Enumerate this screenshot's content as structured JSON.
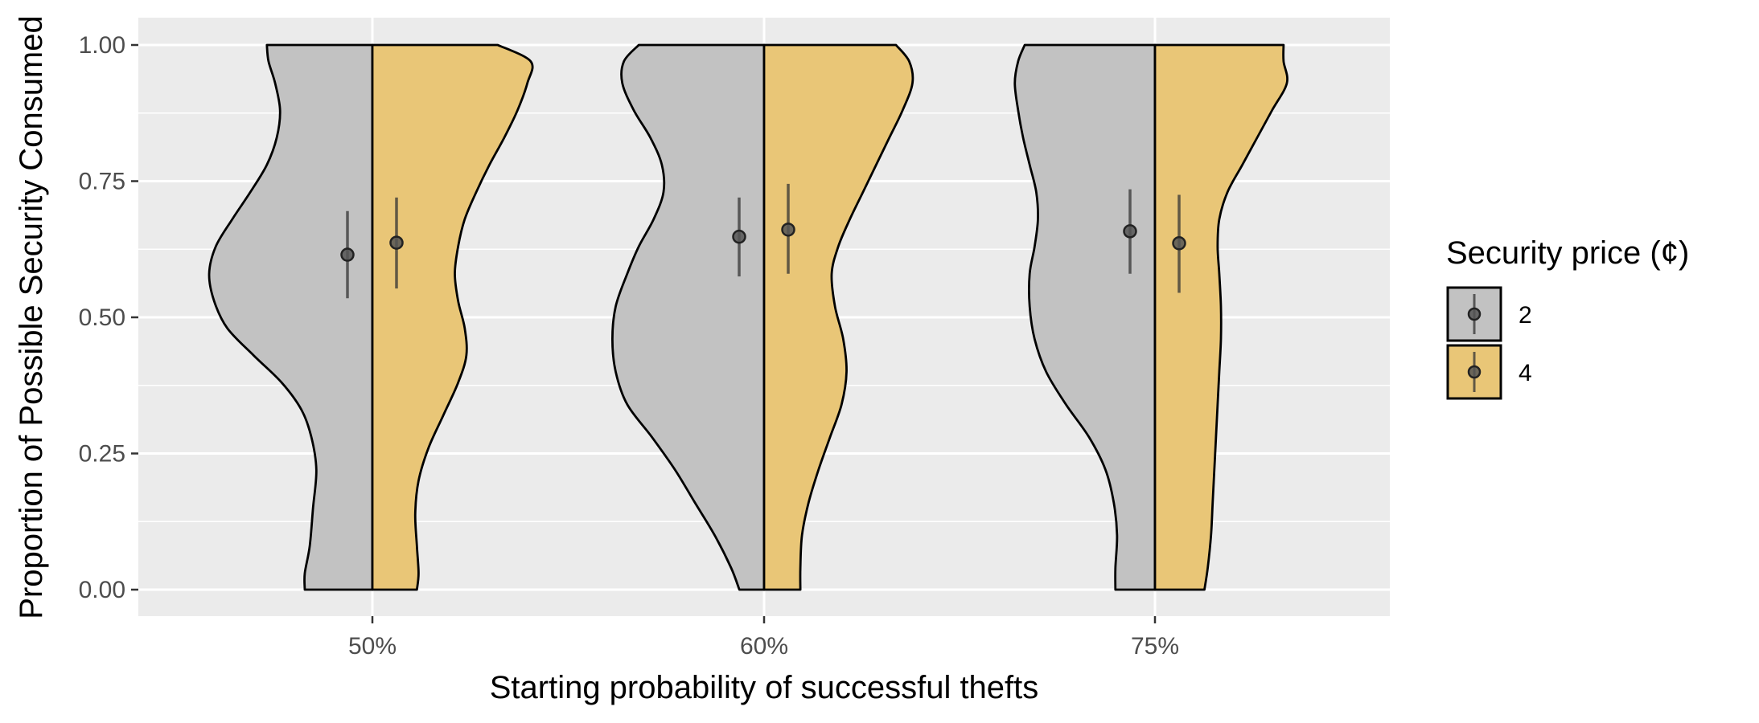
{
  "chart_data": {
    "type": "violin",
    "title": "",
    "xlabel": "Starting probability of successful thefts",
    "ylabel": "Proportion of Possible Security Consumed",
    "categories": [
      "50%",
      "60%",
      "75%"
    ],
    "ylim": [
      -0.05,
      1.05
    ],
    "yticks": [
      0.0,
      0.25,
      0.5,
      0.75,
      1.0
    ],
    "ytick_labels": [
      "0.00",
      "0.25",
      "0.50",
      "0.75",
      "1.00"
    ],
    "grid": true,
    "legend": {
      "title": "Security price (¢)",
      "placement": "right",
      "entries": [
        "2",
        "4"
      ]
    },
    "series": [
      {
        "name": "2",
        "color": "#c2c2c2",
        "side": "left",
        "mean": [
          0.615,
          0.648,
          0.658
        ],
        "ci_low": [
          0.535,
          0.575,
          0.58
        ],
        "ci_high": [
          0.695,
          0.72,
          0.735
        ]
      },
      {
        "name": "4",
        "color": "#e9c677",
        "side": "right",
        "mean": [
          0.637,
          0.661,
          0.636
        ],
        "ci_low": [
          0.553,
          0.58,
          0.545
        ],
        "ci_high": [
          0.72,
          0.745,
          0.725
        ]
      }
    ]
  }
}
